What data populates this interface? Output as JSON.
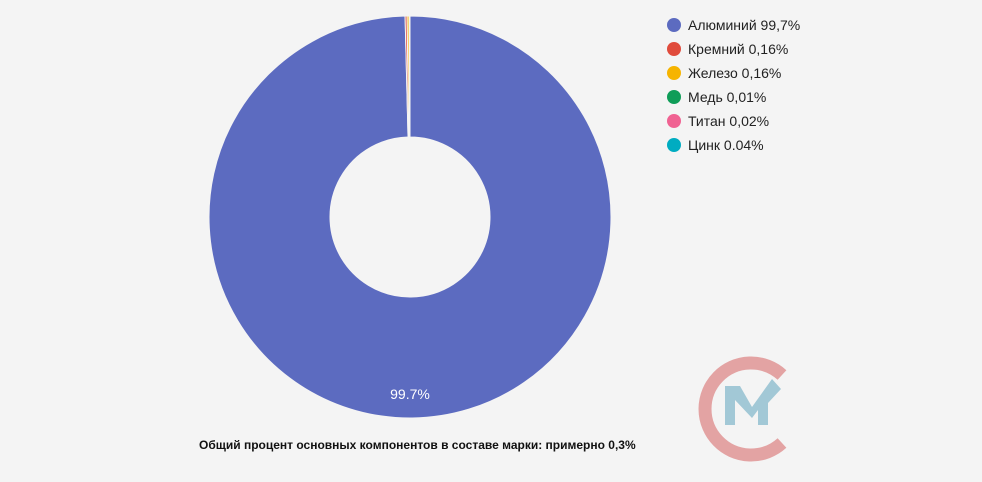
{
  "chart_data": {
    "type": "pie",
    "variant": "donut",
    "categories": [
      "Алюминий",
      "Кремний",
      "Железо",
      "Медь",
      "Титан",
      "Цинк"
    ],
    "values": [
      99.7,
      0.16,
      0.16,
      0.01,
      0.02,
      0.04
    ],
    "colors": [
      "#5c6bc0",
      "#e04b3c",
      "#f6b400",
      "#0f9d58",
      "#f06292",
      "#00acc1"
    ],
    "legend_labels": [
      "Алюминий 99,7%",
      "Кремний 0,16%",
      "Железо 0,16%",
      "Медь 0,01%",
      "Титан 0,02%",
      "Цинк 0.04%"
    ],
    "data_labels": [
      "99.7%"
    ],
    "legend_position": "right"
  },
  "caption": "Общий процент основных компонентов в составе марки: примерно 0,3%",
  "logo": {
    "name": "СМ",
    "colors": [
      "#e3a3a3",
      "#a2c8d6"
    ]
  }
}
